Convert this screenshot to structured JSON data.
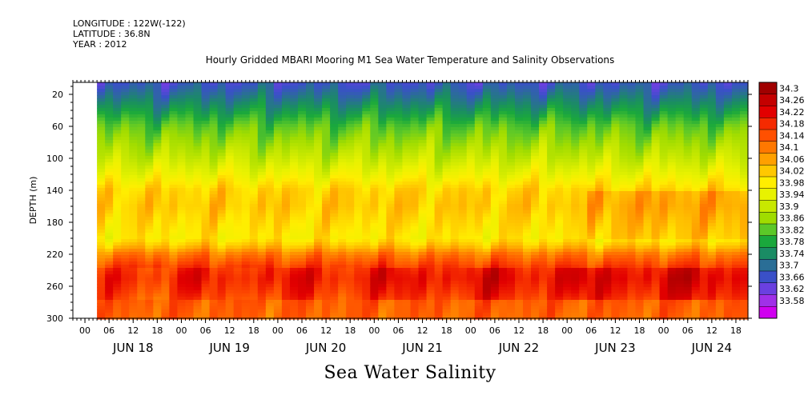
{
  "header": {
    "longitude": "LONGITUDE : 122W(-122)",
    "latitude": "LATITUDE : 36.8N",
    "year": "YEAR : 2012"
  },
  "chart_data": {
    "type": "heatmap",
    "title": "Hourly Gridded MBARI Mooring M1 Sea Water Temperature and Salinity Observations",
    "footer_title": "Sea Water Salinity",
    "xlabel": "",
    "ylabel": "DEPTH (m)",
    "y_ticks": [
      20,
      60,
      100,
      140,
      180,
      220,
      260,
      300
    ],
    "ylim": [
      300,
      5
    ],
    "x_hour_ticks": [
      "00",
      "06",
      "12",
      "18",
      "00",
      "06",
      "12",
      "18",
      "00",
      "06",
      "12",
      "18",
      "00",
      "06",
      "12",
      "18",
      "00",
      "06",
      "12",
      "18",
      "00",
      "06",
      "12",
      "18",
      "00",
      "06",
      "12",
      "18"
    ],
    "x_day_labels": [
      "JUN 18",
      "JUN 19",
      "JUN 20",
      "JUN 21",
      "JUN 22",
      "JUN 23",
      "JUN 24"
    ],
    "data_start_hour": 6,
    "total_hours": 168,
    "colorbar_levels": [
      "34.3",
      "34.26",
      "34.22",
      "34.18",
      "34.14",
      "34.1",
      "34.06",
      "34.02",
      "33.98",
      "33.94",
      "33.9",
      "33.86",
      "33.82",
      "33.78",
      "33.74",
      "33.7",
      "33.66",
      "33.62",
      "33.58"
    ],
    "colorbar_colors": [
      "#a00000",
      "#c40000",
      "#e20000",
      "#f52a00",
      "#ff5000",
      "#ff7800",
      "#ffa000",
      "#ffc800",
      "#ffee00",
      "#e8f200",
      "#c8e800",
      "#a0dc00",
      "#5cc828",
      "#1aa83c",
      "#1a8c64",
      "#2a6e96",
      "#3a50c8",
      "#6a40e0",
      "#a030e8",
      "#d000f0"
    ],
    "profile_depths": [
      5,
      20,
      40,
      60,
      80,
      100,
      120,
      140,
      160,
      180,
      200,
      210,
      220,
      235,
      250,
      265,
      280,
      300
    ],
    "profile_values": [
      33.68,
      33.72,
      33.78,
      33.84,
      33.88,
      33.92,
      33.97,
      34.03,
      34.04,
      34.02,
      34.0,
      34.05,
      34.12,
      34.18,
      34.2,
      34.18,
      34.15,
      34.14
    ]
  }
}
